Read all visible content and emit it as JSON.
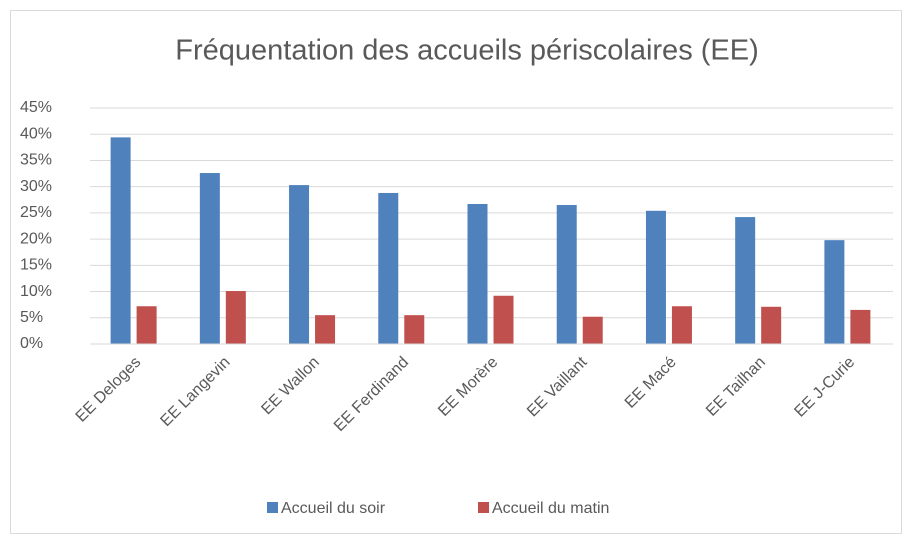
{
  "chart_data": {
    "type": "bar",
    "title": "Fréquentation des accueils périscolaires (EE)",
    "categories": [
      "EE Deloges",
      "EE Langevin",
      "EE Wallon",
      "EE Ferdinand",
      "EE Morère",
      "EE Vaillant",
      "EE Macé",
      "EE Tailhan",
      "EE J-Curie"
    ],
    "series": [
      {
        "name": "Accueil du soir",
        "color": "#4f81bd",
        "values": [
          39.4,
          32.6,
          30.3,
          28.8,
          26.7,
          26.5,
          25.4,
          24.2,
          19.8
        ]
      },
      {
        "name": "Accueil du matin",
        "color": "#c0504d",
        "values": [
          7.2,
          10.1,
          5.5,
          5.5,
          9.2,
          5.2,
          7.2,
          7.1,
          6.5
        ]
      }
    ],
    "ylim": [
      0,
      45
    ],
    "yticks": [
      {
        "value": 0,
        "label": "0%"
      },
      {
        "value": 5,
        "label": "5%"
      },
      {
        "value": 10,
        "label": "10%"
      },
      {
        "value": 15,
        "label": "15%"
      },
      {
        "value": 20,
        "label": "20%"
      },
      {
        "value": 25,
        "label": "25%"
      },
      {
        "value": 30,
        "label": "30%"
      },
      {
        "value": 35,
        "label": "35%"
      },
      {
        "value": 40,
        "label": "40%"
      },
      {
        "value": 45,
        "label": "45%"
      }
    ],
    "grid": true,
    "legend": "bottom"
  }
}
